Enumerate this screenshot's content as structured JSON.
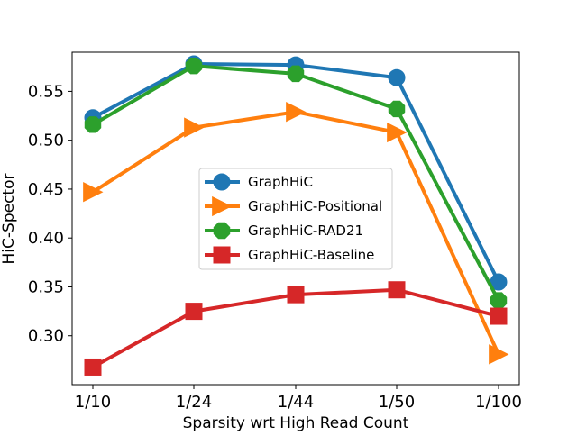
{
  "chart_data": {
    "type": "line",
    "title": "",
    "xlabel": "Sparsity wrt High Read Count",
    "ylabel": "HiC-Spector",
    "categories": [
      "1/10",
      "1/24",
      "1/44",
      "1/50",
      "1/100"
    ],
    "ylim": [
      0.25,
      0.59
    ],
    "yticks": [
      0.3,
      0.35,
      0.4,
      0.45,
      0.5,
      0.55
    ],
    "ytick_labels": [
      "0.30",
      "0.35",
      "0.40",
      "0.45",
      "0.50",
      "0.55"
    ],
    "grid": false,
    "legend_position": "center",
    "series": [
      {
        "name": "GraphHiC",
        "color": "#1f77b4",
        "marker": "circle",
        "values": [
          0.523,
          0.578,
          0.577,
          0.564,
          0.355
        ]
      },
      {
        "name": "GraphHiC-Positional",
        "color": "#ff7f0e",
        "marker": "triangle-right",
        "values": [
          0.447,
          0.513,
          0.529,
          0.508,
          0.281
        ]
      },
      {
        "name": "GraphHiC-RAD21",
        "color": "#2ca02c",
        "marker": "octagon",
        "values": [
          0.516,
          0.576,
          0.568,
          0.532,
          0.336
        ]
      },
      {
        "name": "GraphHiC-Baseline",
        "color": "#d62728",
        "marker": "square",
        "values": [
          0.268,
          0.325,
          0.342,
          0.347,
          0.32
        ]
      }
    ]
  }
}
